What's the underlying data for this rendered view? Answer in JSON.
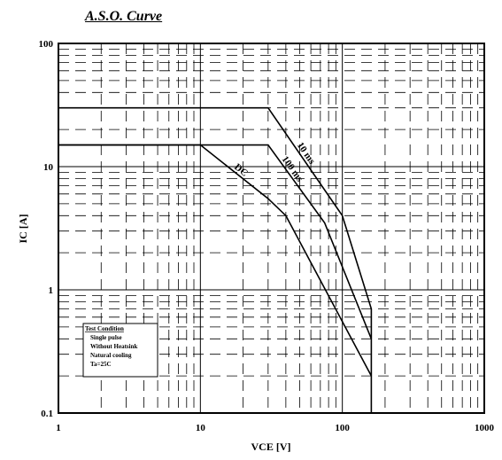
{
  "chart_data": {
    "type": "line",
    "title": "A.S.O. Curve",
    "xlabel": "VCE  [V]",
    "ylabel": "IC  [A]",
    "x_scale": "log",
    "y_scale": "log",
    "xlim": [
      1,
      1000
    ],
    "ylim": [
      0.1,
      100
    ],
    "x_ticks": [
      1,
      10,
      100,
      1000
    ],
    "x_tick_labels": [
      "1",
      "10",
      "100",
      "1000"
    ],
    "y_ticks": [
      0.1,
      1,
      10,
      100
    ],
    "y_tick_labels": [
      "0.1",
      "1",
      "10",
      "100"
    ],
    "grid": true,
    "grid_style": "dashed minor, solid major",
    "series": [
      {
        "name": "10 ms",
        "x": [
          1,
          30,
          100,
          160,
          160
        ],
        "y": [
          30,
          30,
          4,
          0.7,
          0.1
        ]
      },
      {
        "name": "100 ms",
        "x": [
          1,
          30,
          75,
          160
        ],
        "y": [
          15,
          15,
          3.5,
          0.4
        ]
      },
      {
        "name": "DC",
        "x": [
          1,
          10,
          30,
          40,
          160
        ],
        "y": [
          15,
          15,
          5.5,
          4,
          0.2
        ]
      }
    ],
    "legend": {
      "title": "Test Condition",
      "lines": [
        "Single pulse",
        "Without Heatsink",
        "Natural cooling",
        "Ta=25C"
      ],
      "position": "bottom-left"
    },
    "colors": {
      "curve": "#000000",
      "grid": "#000000",
      "background": "#ffffff"
    }
  }
}
